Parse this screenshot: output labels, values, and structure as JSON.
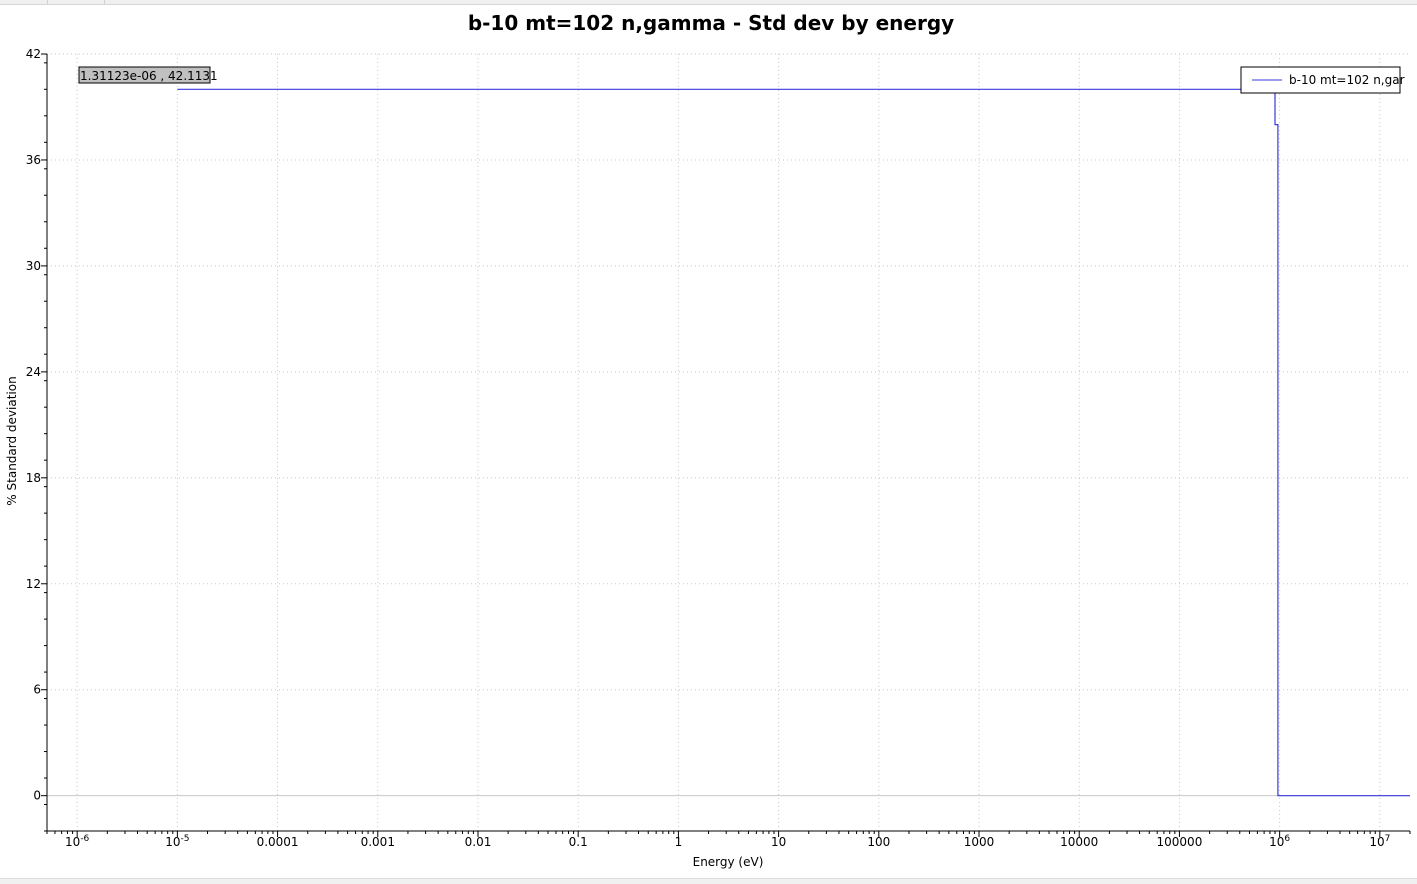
{
  "chart_data": {
    "type": "line",
    "title": "b-10 mt=102 n,gamma - Std dev by energy",
    "xlabel": "Energy (eV)",
    "ylabel": "% Standard deviation",
    "xscale": "log",
    "xlim": [
      5e-07,
      20000000.0
    ],
    "ylim": [
      -2,
      42
    ],
    "grid": true,
    "legend_position": "top-right",
    "yticks": [
      0,
      6,
      12,
      18,
      24,
      30,
      36,
      42
    ],
    "xticks": [
      {
        "value": 1e-06,
        "label": "10",
        "sup": "-6"
      },
      {
        "value": 1e-05,
        "label": "10",
        "sup": "-5"
      },
      {
        "value": 0.0001,
        "label": "0.0001",
        "sup": ""
      },
      {
        "value": 0.001,
        "label": "0.001",
        "sup": ""
      },
      {
        "value": 0.01,
        "label": "0.01",
        "sup": ""
      },
      {
        "value": 0.1,
        "label": "0.1",
        "sup": ""
      },
      {
        "value": 1,
        "label": "1",
        "sup": ""
      },
      {
        "value": 10,
        "label": "10",
        "sup": ""
      },
      {
        "value": 100,
        "label": "100",
        "sup": ""
      },
      {
        "value": 1000,
        "label": "1000",
        "sup": ""
      },
      {
        "value": 10000,
        "label": "10000",
        "sup": ""
      },
      {
        "value": 100000,
        "label": "100000",
        "sup": ""
      },
      {
        "value": 1000000.0,
        "label": "10",
        "sup": "6"
      },
      {
        "value": 10000000.0,
        "label": "10",
        "sup": "7"
      }
    ],
    "series": [
      {
        "name": "b-10 mt=102 n,gar",
        "color": "#3a3adf",
        "step": true,
        "points": [
          [
            1e-05,
            40
          ],
          [
            900000.0,
            40
          ],
          [
            900000.0,
            38
          ],
          [
            960000.0,
            38
          ],
          [
            960000.0,
            0
          ],
          [
            20000000.0,
            0
          ]
        ]
      }
    ]
  },
  "coordinate_readout": "1.31123e-06 , 42.1131"
}
